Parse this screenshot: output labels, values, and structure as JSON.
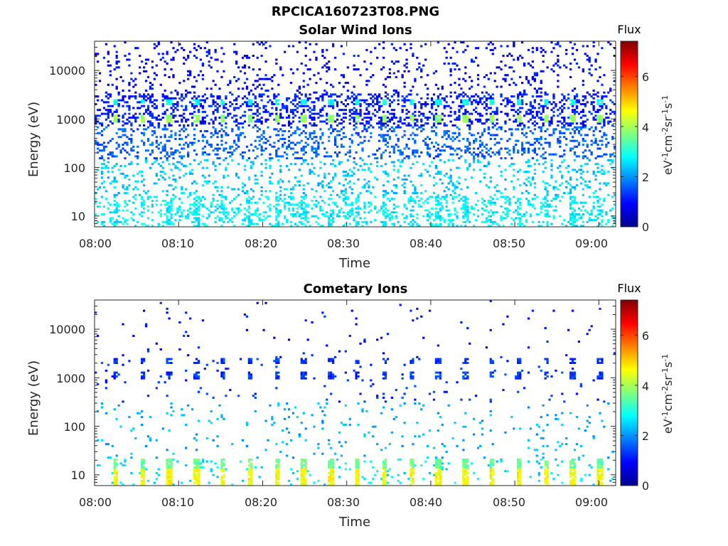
{
  "figure": {
    "title": "RPCICA160723T08.PNG"
  },
  "colors": {
    "colormap": [
      "#00008f",
      "#0000ff",
      "#0080ff",
      "#00ffff",
      "#80ff80",
      "#ffff00",
      "#ff8000",
      "#ff0000",
      "#800000"
    ],
    "axis": "#262626",
    "background": "#ffffff"
  },
  "chart_data": [
    {
      "type": "heatmap",
      "title": "Solar Wind Ions",
      "xlabel": "Time",
      "ylabel": "Energy (eV)",
      "xlim": [
        "08:00",
        "09:02"
      ],
      "ylim": [
        6,
        40000
      ],
      "yscale": "log",
      "xticks": [
        "08:00",
        "08:10",
        "08:20",
        "08:30",
        "08:40",
        "08:50",
        "09:00"
      ],
      "yticks": [
        "10",
        "100",
        "1000",
        "10000"
      ],
      "grid": false,
      "pattern": {
        "scan_period_min": 3.2,
        "peak_energy_ev": 1000,
        "secondary_energy_ev": 2200,
        "peak_flux": 3.9,
        "low_energy_flux": 2.7
      },
      "colorbar": {
        "title": "Flux",
        "label": "eV-1cm-2sr-1s-1",
        "range": [
          0,
          7.4
        ],
        "ticks": [
          "0",
          "2",
          "4",
          "6"
        ]
      }
    },
    {
      "type": "heatmap",
      "title": "Cometary Ions",
      "xlabel": "Time",
      "ylabel": "Energy (eV)",
      "xlim": [
        "08:00",
        "09:02"
      ],
      "ylim": [
        6,
        40000
      ],
      "yscale": "log",
      "xticks": [
        "08:00",
        "08:10",
        "08:20",
        "08:30",
        "08:40",
        "08:50",
        "09:00"
      ],
      "yticks": [
        "10",
        "100",
        "1000",
        "10000"
      ],
      "grid": false,
      "pattern": {
        "scan_period_min": 3.2,
        "peak_energy_ev": 12,
        "secondary_energy_ev": 1100,
        "peak_flux": 4.6,
        "low_energy_flux": 3.1
      },
      "colorbar": {
        "title": "Flux",
        "label": "eV-1cm-2sr-1s-1",
        "range": [
          0,
          7.4
        ],
        "ticks": [
          "0",
          "2",
          "4",
          "6"
        ]
      }
    }
  ]
}
